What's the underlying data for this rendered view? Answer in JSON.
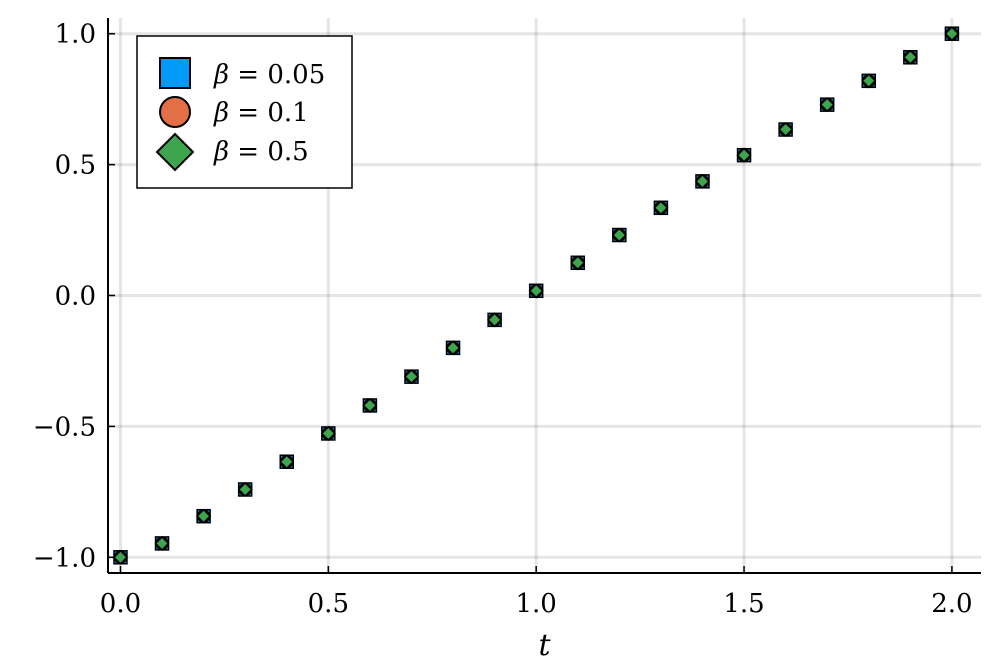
{
  "chart_data": {
    "type": "scatter",
    "title": "",
    "xlabel": "t",
    "ylabel": "",
    "xlim": [
      -0.03,
      2.07
    ],
    "ylim": [
      -1.06,
      1.06
    ],
    "grid": true,
    "legend_position": "top-left",
    "x_ticks": [
      0.0,
      0.5,
      1.0,
      1.5,
      2.0
    ],
    "x_tick_labels": [
      "0.0",
      "0.5",
      "1.0",
      "1.5",
      "2.0"
    ],
    "y_ticks": [
      -1.0,
      -0.5,
      0.0,
      0.5,
      1.0
    ],
    "y_tick_labels": [
      "−1.0",
      "−0.5",
      "0.0",
      "0.5",
      "1.0"
    ],
    "x": [
      0.0,
      0.1,
      0.2,
      0.3,
      0.4,
      0.5,
      0.6,
      0.7,
      0.8,
      0.9,
      1.0,
      1.1,
      1.2,
      1.3,
      1.4,
      1.5,
      1.6,
      1.7,
      1.8,
      1.9,
      2.0
    ],
    "series": [
      {
        "name": "β = 0.05",
        "marker": "square",
        "color": "#009AFA",
        "values": [
          -1.0,
          -0.947,
          -0.843,
          -0.741,
          -0.635,
          -0.527,
          -0.42,
          -0.31,
          -0.2,
          -0.093,
          0.018,
          0.125,
          0.231,
          0.335,
          0.436,
          0.536,
          0.634,
          0.729,
          0.82,
          0.91,
          1.0
        ]
      },
      {
        "name": "β = 0.1",
        "marker": "circle",
        "color": "#E26F46",
        "values": [
          -1.0,
          -0.947,
          -0.843,
          -0.741,
          -0.635,
          -0.527,
          -0.42,
          -0.31,
          -0.2,
          -0.093,
          0.018,
          0.125,
          0.231,
          0.335,
          0.436,
          0.536,
          0.634,
          0.729,
          0.82,
          0.91,
          1.0
        ]
      },
      {
        "name": "β = 0.5",
        "marker": "diamond",
        "color": "#3EA44E",
        "values": [
          -1.0,
          -0.947,
          -0.843,
          -0.741,
          -0.635,
          -0.527,
          -0.42,
          -0.31,
          -0.2,
          -0.093,
          0.018,
          0.125,
          0.231,
          0.335,
          0.436,
          0.536,
          0.634,
          0.729,
          0.82,
          0.91,
          1.0
        ]
      }
    ],
    "legend": {
      "entries": [
        {
          "symbol": "β",
          "equals": " = ",
          "value": "0.05"
        },
        {
          "symbol": "β",
          "equals": " = ",
          "value": "0.1"
        },
        {
          "symbol": "β",
          "equals": " = ",
          "value": "0.5"
        }
      ]
    }
  }
}
